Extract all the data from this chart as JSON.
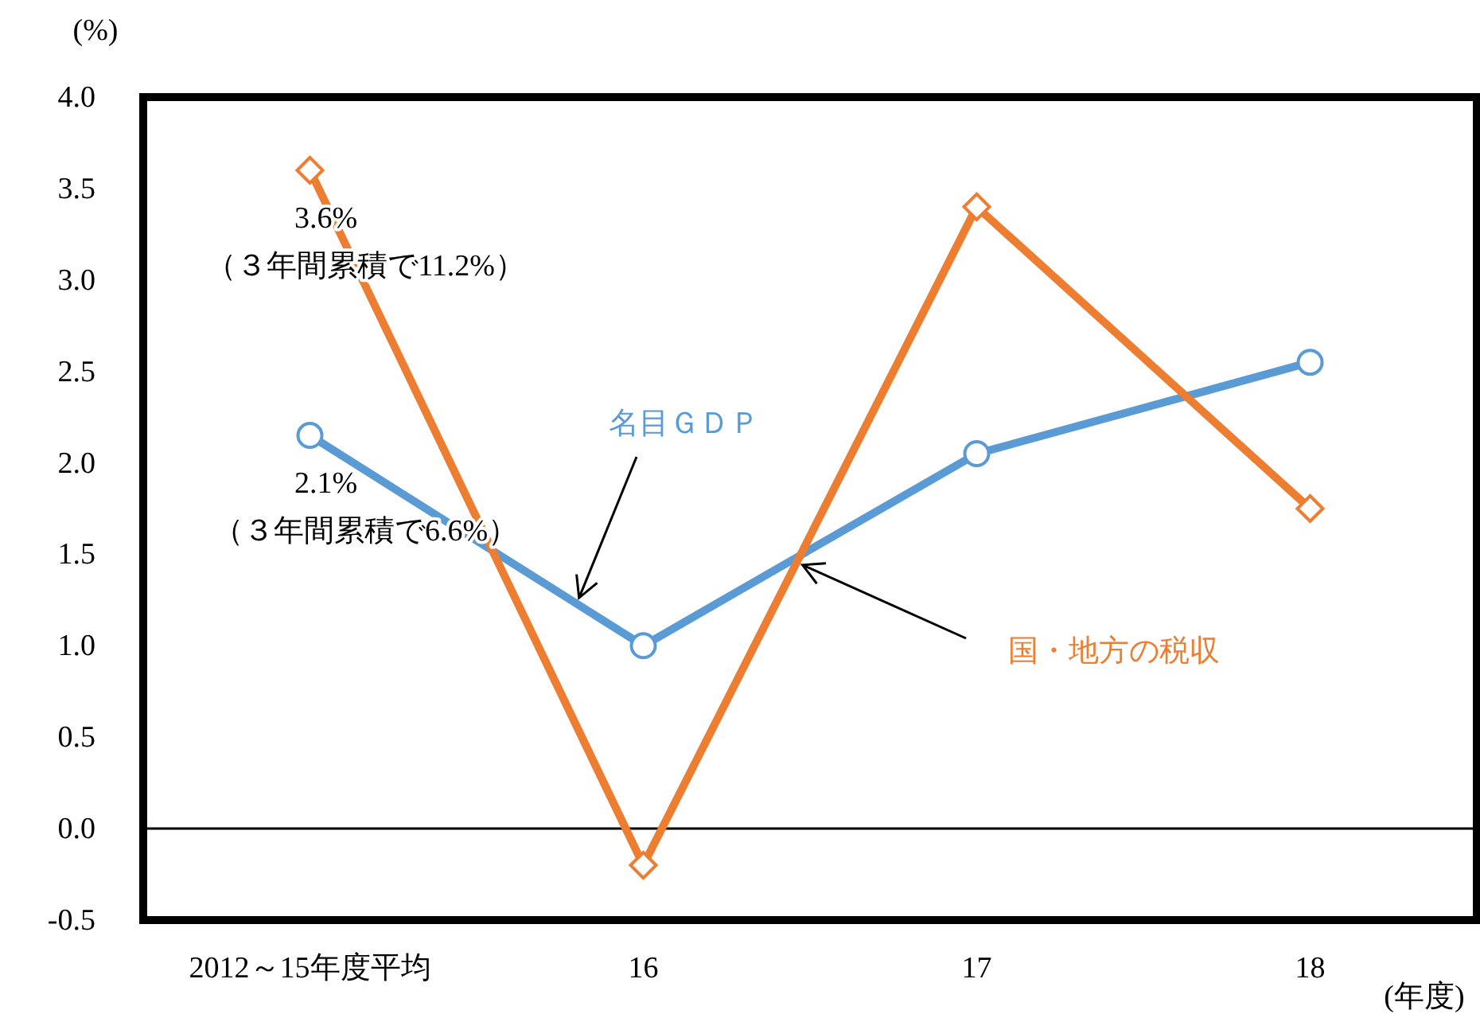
{
  "chart_data": {
    "type": "line",
    "ylabel": "(%)",
    "xlabel": "(年度)",
    "categories": [
      "2012～15年度平均",
      "16",
      "17",
      "18"
    ],
    "series": [
      {
        "name": "名目ＧＤＰ",
        "color": "#5b9bd5",
        "marker": "circle",
        "values": [
          2.15,
          1.0,
          2.05,
          2.55
        ]
      },
      {
        "name": "国・地方の税収",
        "color": "#ed7d31",
        "marker": "diamond",
        "values": [
          3.6,
          -0.2,
          3.4,
          1.75
        ]
      }
    ],
    "ylim": [
      -0.5,
      4.0
    ],
    "yticks": [
      {
        "value": -0.5,
        "label": "-0.5"
      },
      {
        "value": 0,
        "label": "0.0"
      },
      {
        "value": 0.5,
        "label": "0.5"
      },
      {
        "value": 1,
        "label": "1.0"
      },
      {
        "value": 1.5,
        "label": "1.5"
      },
      {
        "value": 2,
        "label": "2.0"
      },
      {
        "value": 2.5,
        "label": "2.5"
      },
      {
        "value": 3,
        "label": "3.0"
      },
      {
        "value": 3.5,
        "label": "3.5"
      },
      {
        "value": 4,
        "label": "4.0"
      }
    ],
    "ref_lines": [
      {
        "axis": "y",
        "value": 0,
        "color": "#000000"
      }
    ],
    "annotations": [
      {
        "text": "3.6%\n（３年間累積で11.2%）",
        "x": "2012～15年度平均",
        "y": 3.6
      },
      {
        "text": "2.1%\n（３年間累積で6.6%）",
        "x": "2012～15年度平均",
        "y": 2.15
      }
    ],
    "grid": false,
    "legend": false
  }
}
